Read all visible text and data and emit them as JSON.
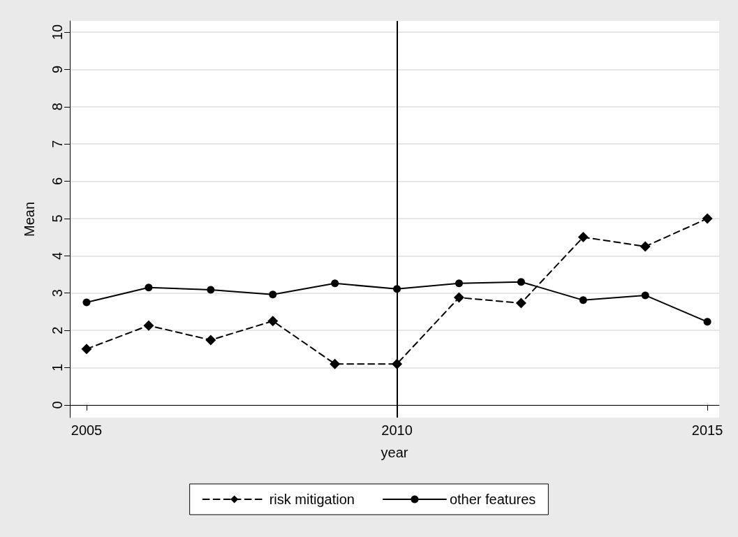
{
  "chart_data": {
    "type": "line",
    "xlabel": "year",
    "ylabel": "Mean",
    "x": [
      2005,
      2006,
      2007,
      2008,
      2009,
      2010,
      2011,
      2012,
      2013,
      2014,
      2015
    ],
    "series": [
      {
        "name": "risk mitigation",
        "color": "#000000",
        "marker": "diamond",
        "line_style": "dashed",
        "values": [
          1.5,
          2.13,
          1.74,
          2.25,
          1.1,
          1.1,
          2.88,
          2.73,
          4.5,
          4.25,
          5.0
        ]
      },
      {
        "name": "other features",
        "color": "#000000",
        "marker": "circle",
        "line_style": "solid",
        "values": [
          2.75,
          3.15,
          3.09,
          2.96,
          3.26,
          3.11,
          3.26,
          3.3,
          2.81,
          2.94,
          2.23
        ]
      }
    ],
    "xlim": [
      2004.73,
      2015.19
    ],
    "xticks": [
      2005,
      2010,
      2015
    ],
    "ylim": [
      -0.34,
      10.3
    ],
    "yticks": [
      0,
      1,
      2,
      3,
      4,
      5,
      6,
      7,
      8,
      9,
      10
    ],
    "ref_lines": [
      {
        "axis": "x",
        "value": 2010,
        "color": "#000000",
        "line_style": "solid"
      }
    ],
    "grid": "y",
    "legend": "bottom"
  }
}
